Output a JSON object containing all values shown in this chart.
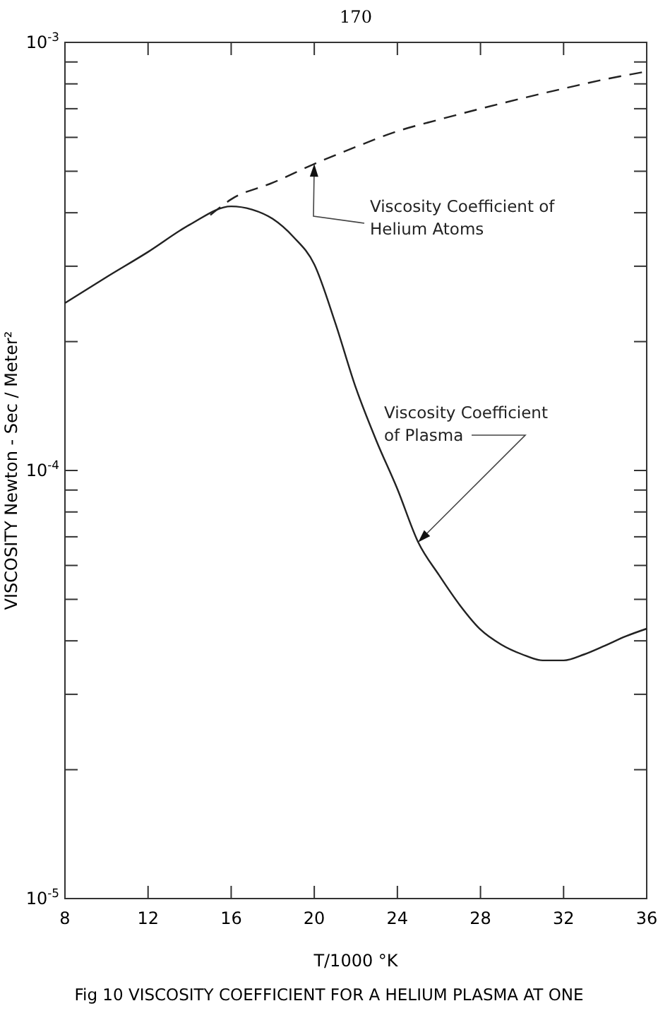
{
  "chart_data": {
    "type": "line",
    "title": "Fig 10 VISCOSITY  COEFFICIENT FOR A HELIUM PLASMA AT ONE",
    "xlabel": "T/1000 °K",
    "ylabel": "VISCOSITY  Newton - Sec / Meter²",
    "annotations": [
      "170"
    ],
    "log": "y",
    "grid": false,
    "legend": false,
    "xlim": [
      8,
      36
    ],
    "xticks": [
      8,
      12,
      16,
      20,
      24,
      28,
      32,
      36
    ],
    "ylim": [
      1e-05,
      0.001
    ],
    "yticks": [
      {
        "value": 1e-05,
        "label": "10$^{-5}$"
      },
      {
        "value": 2e-05,
        "label": null
      },
      {
        "value": 3e-05,
        "label": null
      },
      {
        "value": 4e-05,
        "label": null
      },
      {
        "value": 5e-05,
        "label": null
      },
      {
        "value": 6e-05,
        "label": null
      },
      {
        "value": 7e-05,
        "label": null
      },
      {
        "value": 8e-05,
        "label": null
      },
      {
        "value": 9e-05,
        "label": null
      },
      {
        "value": 0.0001,
        "label": "10$^{-4}$"
      },
      {
        "value": 0.0002,
        "label": null
      },
      {
        "value": 0.0003,
        "label": null
      },
      {
        "value": 0.0004,
        "label": null
      },
      {
        "value": 0.0005,
        "label": null
      },
      {
        "value": 0.0006,
        "label": null
      },
      {
        "value": 0.0007,
        "label": null
      },
      {
        "value": 0.0008,
        "label": null
      },
      {
        "value": 0.0009,
        "label": null
      },
      {
        "value": 0.001,
        "label": "10$^{-3}$"
      }
    ],
    "series": [
      {
        "name": "Viscosity Coefficient of Helium Atoms",
        "color": "#222222",
        "line_style": "dashed",
        "x": [
          15,
          16,
          18,
          20,
          22,
          24,
          26,
          28,
          30,
          32,
          34,
          36
        ],
        "values": [
          0.000395,
          0.00043,
          0.00047,
          0.00052,
          0.00057,
          0.00062,
          0.00066,
          0.0007,
          0.00074,
          0.00078,
          0.00082,
          0.000855
        ]
      },
      {
        "name": "Viscosity Coefficient of Plasma",
        "color": "#222222",
        "line_style": "solid",
        "x": [
          8,
          10,
          12,
          14,
          16,
          17,
          18,
          19,
          20,
          21,
          22,
          23,
          24,
          25,
          26,
          27,
          28,
          29,
          30,
          31,
          32,
          33,
          34,
          35,
          36
        ],
        "values": [
          0.000246,
          0.000283,
          0.000324,
          0.000375,
          0.000414,
          0.000407,
          0.000387,
          0.000351,
          0.000303,
          0.000222,
          0.000156,
          0.000117,
          9.05e-05,
          6.8e-05,
          5.7e-05,
          4.85e-05,
          4.25e-05,
          3.92e-05,
          3.72e-05,
          3.6e-05,
          3.6e-05,
          3.72e-05,
          3.9e-05,
          4.1e-05,
          4.27e-05
        ]
      }
    ]
  }
}
